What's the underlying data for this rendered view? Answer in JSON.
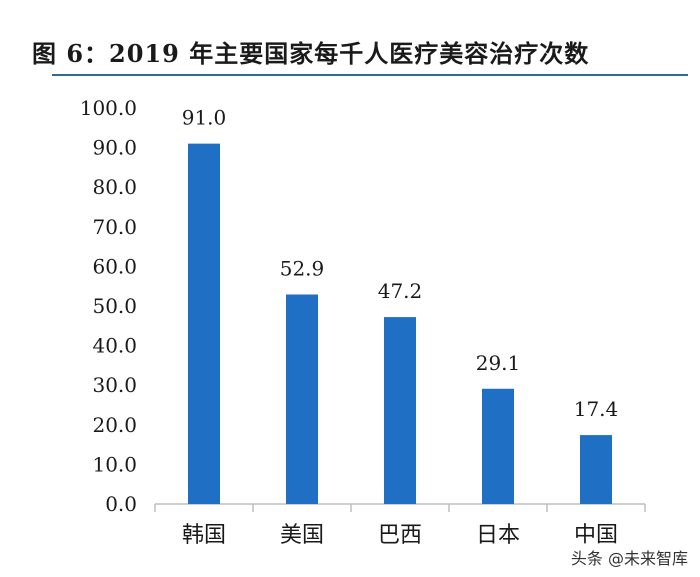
{
  "title": "图 6：2019 年主要国家每千人医疗美容治疗次数",
  "watermark": "头条 @未来智库",
  "colors": {
    "bar": "#1f6fc5",
    "axis": "#bfbfbf",
    "text": "#1a1a1a",
    "title_rule": "#2e6b8e"
  },
  "chart_data": {
    "type": "bar",
    "title": "图 6：2019 年主要国家每千人医疗美容治疗次数",
    "categories": [
      "韩国",
      "美国",
      "巴西",
      "日本",
      "中国"
    ],
    "values": [
      91.0,
      52.9,
      47.2,
      29.1,
      17.4
    ],
    "value_labels": [
      "91.0",
      "52.9",
      "47.2",
      "29.1",
      "17.4"
    ],
    "ylim": [
      0,
      100
    ],
    "yticks": [
      "0.0",
      "10.0",
      "20.0",
      "30.0",
      "40.0",
      "50.0",
      "60.0",
      "70.0",
      "80.0",
      "90.0",
      "100.0"
    ],
    "xlabel": "",
    "ylabel": "",
    "grid": false,
    "legend": "none"
  }
}
